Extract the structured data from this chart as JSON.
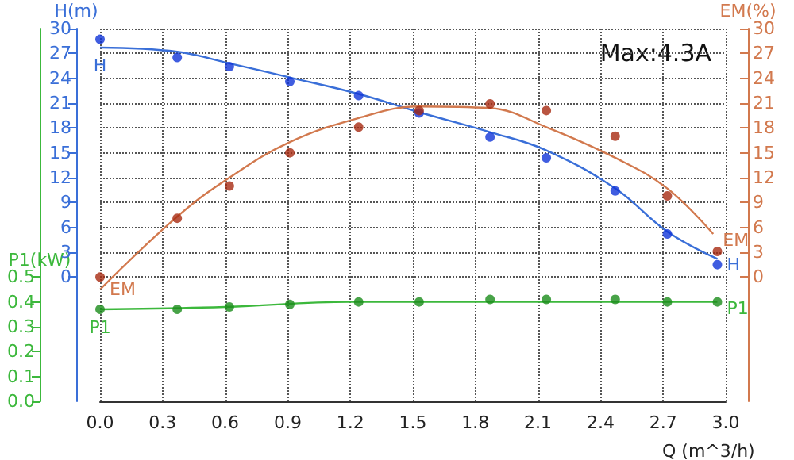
{
  "chart_data": {
    "type": "line",
    "xlabel": "Q (m^3/h)",
    "ylabel": "H(m)",
    "y2label": "EM(%)",
    "y3label": "P1(kW)",
    "annotations": [
      "Max:4.3A"
    ],
    "xlim": [
      0,
      3
    ],
    "xticks": [
      {
        "value": 0,
        "label": "0.0"
      },
      {
        "value": 0.3,
        "label": "0.3"
      },
      {
        "value": 0.6,
        "label": "0.6"
      },
      {
        "value": 0.9,
        "label": "0.9"
      },
      {
        "value": 1.2,
        "label": "1.2"
      },
      {
        "value": 1.5,
        "label": "1.5"
      },
      {
        "value": 1.8,
        "label": "1.8"
      },
      {
        "value": 2.1,
        "label": "2.1"
      },
      {
        "value": 2.4,
        "label": "2.4"
      },
      {
        "value": 2.7,
        "label": "2.7"
      },
      {
        "value": 3,
        "label": "3.0"
      }
    ],
    "ylim": [
      -15,
      30
    ],
    "yticks": [
      0,
      3,
      6,
      9,
      12,
      15,
      18,
      21,
      24,
      27,
      30
    ],
    "y2lim": [
      -15,
      30
    ],
    "y2ticks": [
      0,
      3,
      6,
      9,
      12,
      15,
      18,
      21,
      24,
      27,
      30
    ],
    "y3lim": [
      0,
      1.5
    ],
    "y3ticks": [
      {
        "value": 0,
        "label": "0.0"
      },
      {
        "value": 0.1,
        "label": "0.1"
      },
      {
        "value": 0.2,
        "label": "0.2"
      },
      {
        "value": 0.3,
        "label": "0.3"
      },
      {
        "value": 0.4,
        "label": "0.4"
      },
      {
        "value": 0.5,
        "label": "0.5"
      }
    ],
    "grid": true,
    "marker": "circle",
    "series": [
      {
        "type": "scatter",
        "color": "#1034d8",
        "x": [
          0,
          0.37,
          0.62,
          0.91,
          1.24,
          1.53,
          1.87,
          2.14,
          2.47,
          2.72,
          2.96
        ],
        "values": [
          28.7,
          26.5,
          25.4,
          23.6,
          21.9,
          19.8,
          16.9,
          14.4,
          10.4,
          5.2,
          1.5
        ]
      },
      {
        "type": "line",
        "marker": "none",
        "name": "H",
        "color": "#3a6fd8",
        "x": [
          0,
          0.37,
          0.62,
          0.91,
          1.24,
          1.53,
          1.87,
          2.14,
          2.47,
          2.72,
          2.96
        ],
        "values": [
          27.7,
          27.2,
          25.8,
          24.1,
          22.1,
          19.9,
          17.5,
          15.3,
          10.7,
          5.5,
          2.2
        ]
      },
      {
        "type": "scatter",
        "axis": "y2",
        "color": "#a82a12",
        "x": [
          0,
          0.37,
          0.62,
          0.91,
          1.24,
          1.53,
          1.87,
          2.14,
          2.47,
          2.72,
          2.96
        ],
        "values": [
          0,
          7.1,
          11,
          15,
          18.1,
          20.1,
          20.9,
          20.1,
          17,
          9.8,
          3.1
        ]
      },
      {
        "type": "line",
        "marker": "none",
        "name": "EM",
        "axis": "y2",
        "color": "#d2794e",
        "x": [
          0,
          0.37,
          0.62,
          0.91,
          1.24,
          1.53,
          1.87,
          2.14,
          2.47,
          2.72,
          2.94
        ],
        "values": [
          -1.5,
          7.3,
          12,
          16.3,
          19.2,
          20.6,
          20.4,
          18.1,
          14.4,
          10.7,
          5.2
        ]
      },
      {
        "type": "scatter",
        "axis": "y3",
        "color": "#1a8c1a",
        "x": [
          0,
          0.37,
          0.62,
          0.91,
          1.24,
          1.53,
          1.87,
          2.14,
          2.47,
          2.72,
          2.96
        ],
        "values": [
          0.37,
          0.37,
          0.38,
          0.39,
          0.4,
          0.4,
          0.41,
          0.41,
          0.41,
          0.4,
          0.4
        ]
      },
      {
        "type": "line",
        "marker": "none",
        "name": "P1",
        "axis": "y3",
        "color": "#3cb83c",
        "x": [
          0,
          0.6,
          1.2,
          2.96
        ],
        "values": [
          0.37,
          0.38,
          0.4,
          0.4
        ]
      }
    ]
  }
}
